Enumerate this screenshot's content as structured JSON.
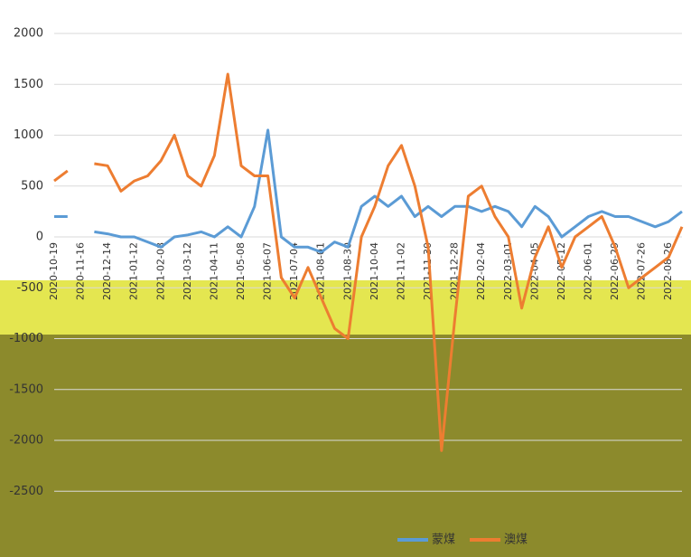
{
  "chart_data": {
    "type": "line",
    "categories": [
      "2020-10-19",
      null,
      "2020-11-16",
      null,
      "2020-12-14",
      null,
      "2021-01-12",
      null,
      "2021-02-08",
      null,
      "2021-03-12",
      null,
      "2021-04-11",
      null,
      "2021-05-08",
      null,
      "2021-06-07",
      null,
      "2021-07-04",
      null,
      "2021-08-01",
      null,
      "2021-08-30",
      null,
      "2021-10-04",
      null,
      "2021-11-02",
      null,
      "2021-11-30",
      null,
      "2021-12-28",
      null,
      "2022-02-04",
      null,
      "2022-03-01",
      null,
      "2022-04-05",
      null,
      "2022-05-12",
      null,
      "2022-06-01",
      null,
      "2022-06-29",
      null,
      "2022-07-26",
      null,
      "2022-08-26",
      null
    ],
    "series": [
      {
        "name": "蒙煤",
        "color": "#5b9bd5",
        "values": [
          200,
          200,
          null,
          50,
          30,
          0,
          0,
          -50,
          -100,
          0,
          20,
          50,
          0,
          100,
          0,
          300,
          1050,
          0,
          -100,
          -100,
          -150,
          -50,
          -100,
          300,
          400,
          300,
          400,
          200,
          300,
          200,
          300,
          300,
          250,
          300,
          250,
          100,
          300,
          200,
          0,
          100,
          200,
          250,
          200,
          200,
          150,
          100,
          150,
          250
        ]
      },
      {
        "name": "澳煤",
        "color": "#ed7d31",
        "values": [
          550,
          650,
          null,
          720,
          700,
          450,
          550,
          600,
          750,
          1000,
          600,
          500,
          800,
          1600,
          700,
          600,
          600,
          -400,
          -600,
          -300,
          -600,
          -900,
          -1000,
          0,
          300,
          700,
          900,
          500,
          -100,
          -2100,
          -800,
          400,
          500,
          200,
          0,
          -700,
          -200,
          100,
          -300,
          0,
          100,
          200,
          -100,
          -500,
          -400,
          -300,
          -200,
          100
        ]
      }
    ],
    "ylim": [
      -3000,
      2000
    ],
    "yticks": [
      2000,
      1500,
      1000,
      500,
      0,
      -500,
      -1000,
      -1500,
      -2000,
      -2500
    ],
    "grid": true
  }
}
